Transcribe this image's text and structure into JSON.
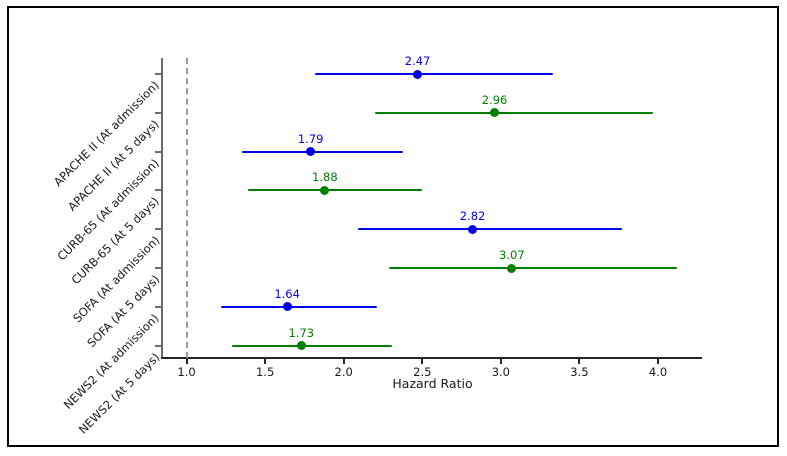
{
  "chart_data": {
    "type": "forest",
    "title": "",
    "xlabel": "Hazard Ratio",
    "xlim": [
      0.85,
      4.28
    ],
    "x_ticks": [
      1.0,
      1.5,
      2.0,
      2.5,
      3.0,
      3.5,
      4.0
    ],
    "x_tick_labels": [
      "1.0",
      "1.5",
      "2.0",
      "2.5",
      "3.0",
      "3.5",
      "4.0"
    ],
    "grid": false,
    "legend": "none",
    "reference_line": {
      "value": 1.0,
      "style": "dashed",
      "color": "#9a9a9a"
    },
    "rows": [
      {
        "label": "APACHE II (At admission)",
        "hr": 2.47,
        "hr_label": "2.47",
        "ci_low": 1.82,
        "ci_high": 3.33,
        "color": "#0000ee"
      },
      {
        "label": "APACHE II (At 5 days)",
        "hr": 2.96,
        "hr_label": "2.96",
        "ci_low": 2.2,
        "ci_high": 3.97,
        "color": "#008000"
      },
      {
        "label": "CURB-65 (At admission)",
        "hr": 1.79,
        "hr_label": "1.79",
        "ci_low": 1.35,
        "ci_high": 2.38,
        "color": "#0000ee"
      },
      {
        "label": "CURB-65 (At 5 days)",
        "hr": 1.88,
        "hr_label": "1.88",
        "ci_low": 1.39,
        "ci_high": 2.5,
        "color": "#008000"
      },
      {
        "label": "SOFA (At admission)",
        "hr": 2.82,
        "hr_label": "2.82",
        "ci_low": 2.09,
        "ci_high": 3.77,
        "color": "#0000ee"
      },
      {
        "label": "SOFA (At 5 days)",
        "hr": 3.07,
        "hr_label": "3.07",
        "ci_low": 2.29,
        "ci_high": 4.12,
        "color": "#008000"
      },
      {
        "label": "NEWS2 (At admission)",
        "hr": 1.64,
        "hr_label": "1.64",
        "ci_low": 1.22,
        "ci_high": 2.21,
        "color": "#0000ee"
      },
      {
        "label": "NEWS2 (At 5 days)",
        "hr": 1.73,
        "hr_label": "1.73",
        "ci_low": 1.29,
        "ci_high": 2.31,
        "color": "#008000"
      }
    ]
  },
  "colors": {
    "at_admission": "#0000ee",
    "at_5_days": "#008000",
    "axis_spine_left": "#6b6b6b",
    "axis_spine_bottom": "#262626",
    "figure_border": "#000000",
    "background": "#ffffff"
  }
}
